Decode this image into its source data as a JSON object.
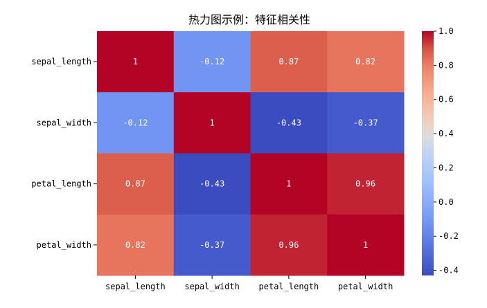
{
  "chart_data": {
    "type": "heatmap",
    "title": "热力图示例：特征相关性",
    "x_categories": [
      "sepal_length",
      "sepal_width",
      "petal_length",
      "petal_width"
    ],
    "y_categories": [
      "sepal_length",
      "sepal_width",
      "petal_length",
      "petal_width"
    ],
    "values": [
      [
        1,
        -0.12,
        0.87,
        0.82
      ],
      [
        -0.12,
        1,
        -0.43,
        -0.37
      ],
      [
        0.87,
        -0.43,
        1,
        0.96
      ],
      [
        0.82,
        -0.37,
        0.96,
        1
      ]
    ],
    "value_labels": [
      [
        "1",
        "-0.12",
        "0.87",
        "0.82"
      ],
      [
        "-0.12",
        "1",
        "-0.43",
        "-0.37"
      ],
      [
        "0.87",
        "-0.43",
        "1",
        "0.96"
      ],
      [
        "0.82",
        "-0.37",
        "0.96",
        "1"
      ]
    ],
    "colormap": "coolwarm",
    "colorbar": {
      "range": [
        -0.43,
        1.0
      ],
      "ticks": [
        1.0,
        0.8,
        0.6,
        0.4,
        0.2,
        0.0,
        -0.2,
        -0.4
      ],
      "tick_labels": [
        "1.0",
        "0.8",
        "0.6",
        "0.4",
        "0.2",
        "0.0",
        "-0.2",
        "-0.4"
      ]
    },
    "annotation_color": "#ffffff",
    "grid": false
  }
}
